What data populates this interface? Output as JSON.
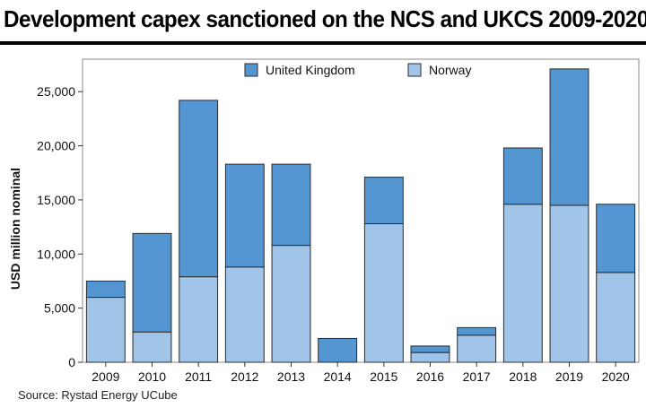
{
  "title": "Development capex sanctioned on the NCS and UKCS 2009-2020",
  "source": "Source: Rystad Energy UCube",
  "colors": {
    "uk": "#5496d2",
    "norway": "#a1c4e9",
    "outline": "#2b2b2b"
  },
  "chart_data": {
    "type": "bar",
    "stacked": true,
    "ylabel": "USD million nominal",
    "xlabel": "",
    "ylim": [
      0,
      28000
    ],
    "yticks": [
      0,
      5000,
      10000,
      15000,
      20000,
      25000
    ],
    "ytick_labels": [
      "0",
      "5,000",
      "10,000",
      "15,000",
      "20,000",
      "25,000"
    ],
    "legend_position": "top",
    "categories": [
      "2009",
      "2010",
      "2011",
      "2012",
      "2013",
      "2014",
      "2015",
      "2016",
      "2017",
      "2018",
      "2019",
      "2020"
    ],
    "series": [
      {
        "name": "Norway",
        "values": [
          6000,
          2800,
          7900,
          8800,
          10800,
          0,
          12800,
          900,
          2500,
          14600,
          14500,
          8300
        ]
      },
      {
        "name": "United Kingdom",
        "values": [
          1500,
          9100,
          16300,
          9500,
          7500,
          2200,
          4300,
          600,
          700,
          5200,
          12600,
          6300
        ]
      }
    ],
    "legend": [
      "United Kingdom",
      "Norway"
    ]
  }
}
